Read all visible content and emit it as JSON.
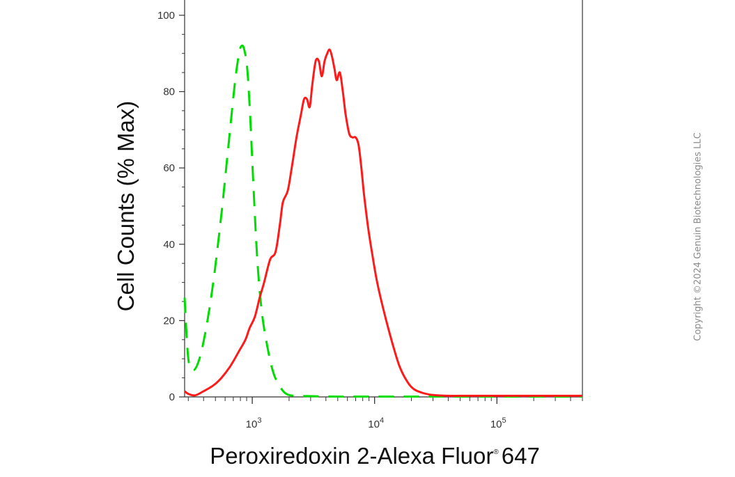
{
  "chart_data": {
    "type": "line",
    "xlabel": "Peroxiredoxin 2-Alexa Fluor",
    "xlabel_reg": "®",
    "xlabel_suffix": "647",
    "ylabel": "Cell Counts (% Max)",
    "x_scale": "log",
    "xlim": [
      280,
      500000
    ],
    "ylim": [
      0,
      104
    ],
    "y_ticks": [
      0,
      20,
      40,
      60,
      80,
      100
    ],
    "x_major_ticks": [
      1000,
      10000,
      100000
    ],
    "x_tick_labels": [
      {
        "base": "10",
        "exp": "3"
      },
      {
        "base": "10",
        "exp": "4"
      },
      {
        "base": "10",
        "exp": "5"
      }
    ],
    "series": [
      {
        "color": "#00dd00",
        "dash": true,
        "x": [
          280,
          300,
          330,
          370,
          420,
          480,
          560,
          640,
          720,
          780,
          820,
          860,
          910,
          960,
          1020,
          1100,
          1200,
          1350,
          1500,
          1700,
          1900,
          2200,
          3000,
          5000,
          10000,
          30000,
          100000,
          500000
        ],
        "y": [
          26,
          10,
          7,
          10,
          18,
          30,
          48,
          66,
          82,
          90,
          92,
          91,
          86,
          74,
          56,
          36,
          22,
          12,
          6,
          2.5,
          0.8,
          0.3,
          0.2,
          0.1,
          0.1,
          0.1,
          0.1,
          0.1
        ]
      },
      {
        "color": "#ff1a1a",
        "dash": false,
        "x": [
          280,
          300,
          340,
          400,
          480,
          560,
          660,
          780,
          880,
          950,
          1050,
          1150,
          1250,
          1400,
          1550,
          1680,
          1780,
          1950,
          2100,
          2300,
          2500,
          2650,
          2800,
          2950,
          3100,
          3300,
          3500,
          3700,
          3900,
          4100,
          4300,
          4500,
          4700,
          4900,
          5200,
          5500,
          5800,
          6200,
          6600,
          7000,
          7400,
          7800,
          8200,
          8800,
          9500,
          10500,
          12000,
          14000,
          16000,
          18500,
          21000,
          25000,
          30000,
          40000,
          60000,
          100000,
          200000,
          500000
        ],
        "y": [
          1.5,
          0.8,
          0.4,
          1.5,
          3,
          5,
          8,
          12,
          15,
          18,
          21,
          26,
          30,
          36,
          38,
          45,
          51,
          54,
          60,
          68,
          74,
          78,
          78,
          76,
          82,
          88,
          88,
          84,
          88,
          90,
          91,
          89,
          86,
          83,
          85,
          80,
          74,
          69,
          68,
          68,
          66,
          60,
          53,
          45,
          38,
          30,
          22,
          14,
          8,
          4,
          2,
          1,
          0.5,
          0.3,
          0.3,
          0.3,
          0.3,
          0.3
        ]
      }
    ]
  },
  "copyright": "Copyright ©2024 Genuin Biotechnologies LLC"
}
